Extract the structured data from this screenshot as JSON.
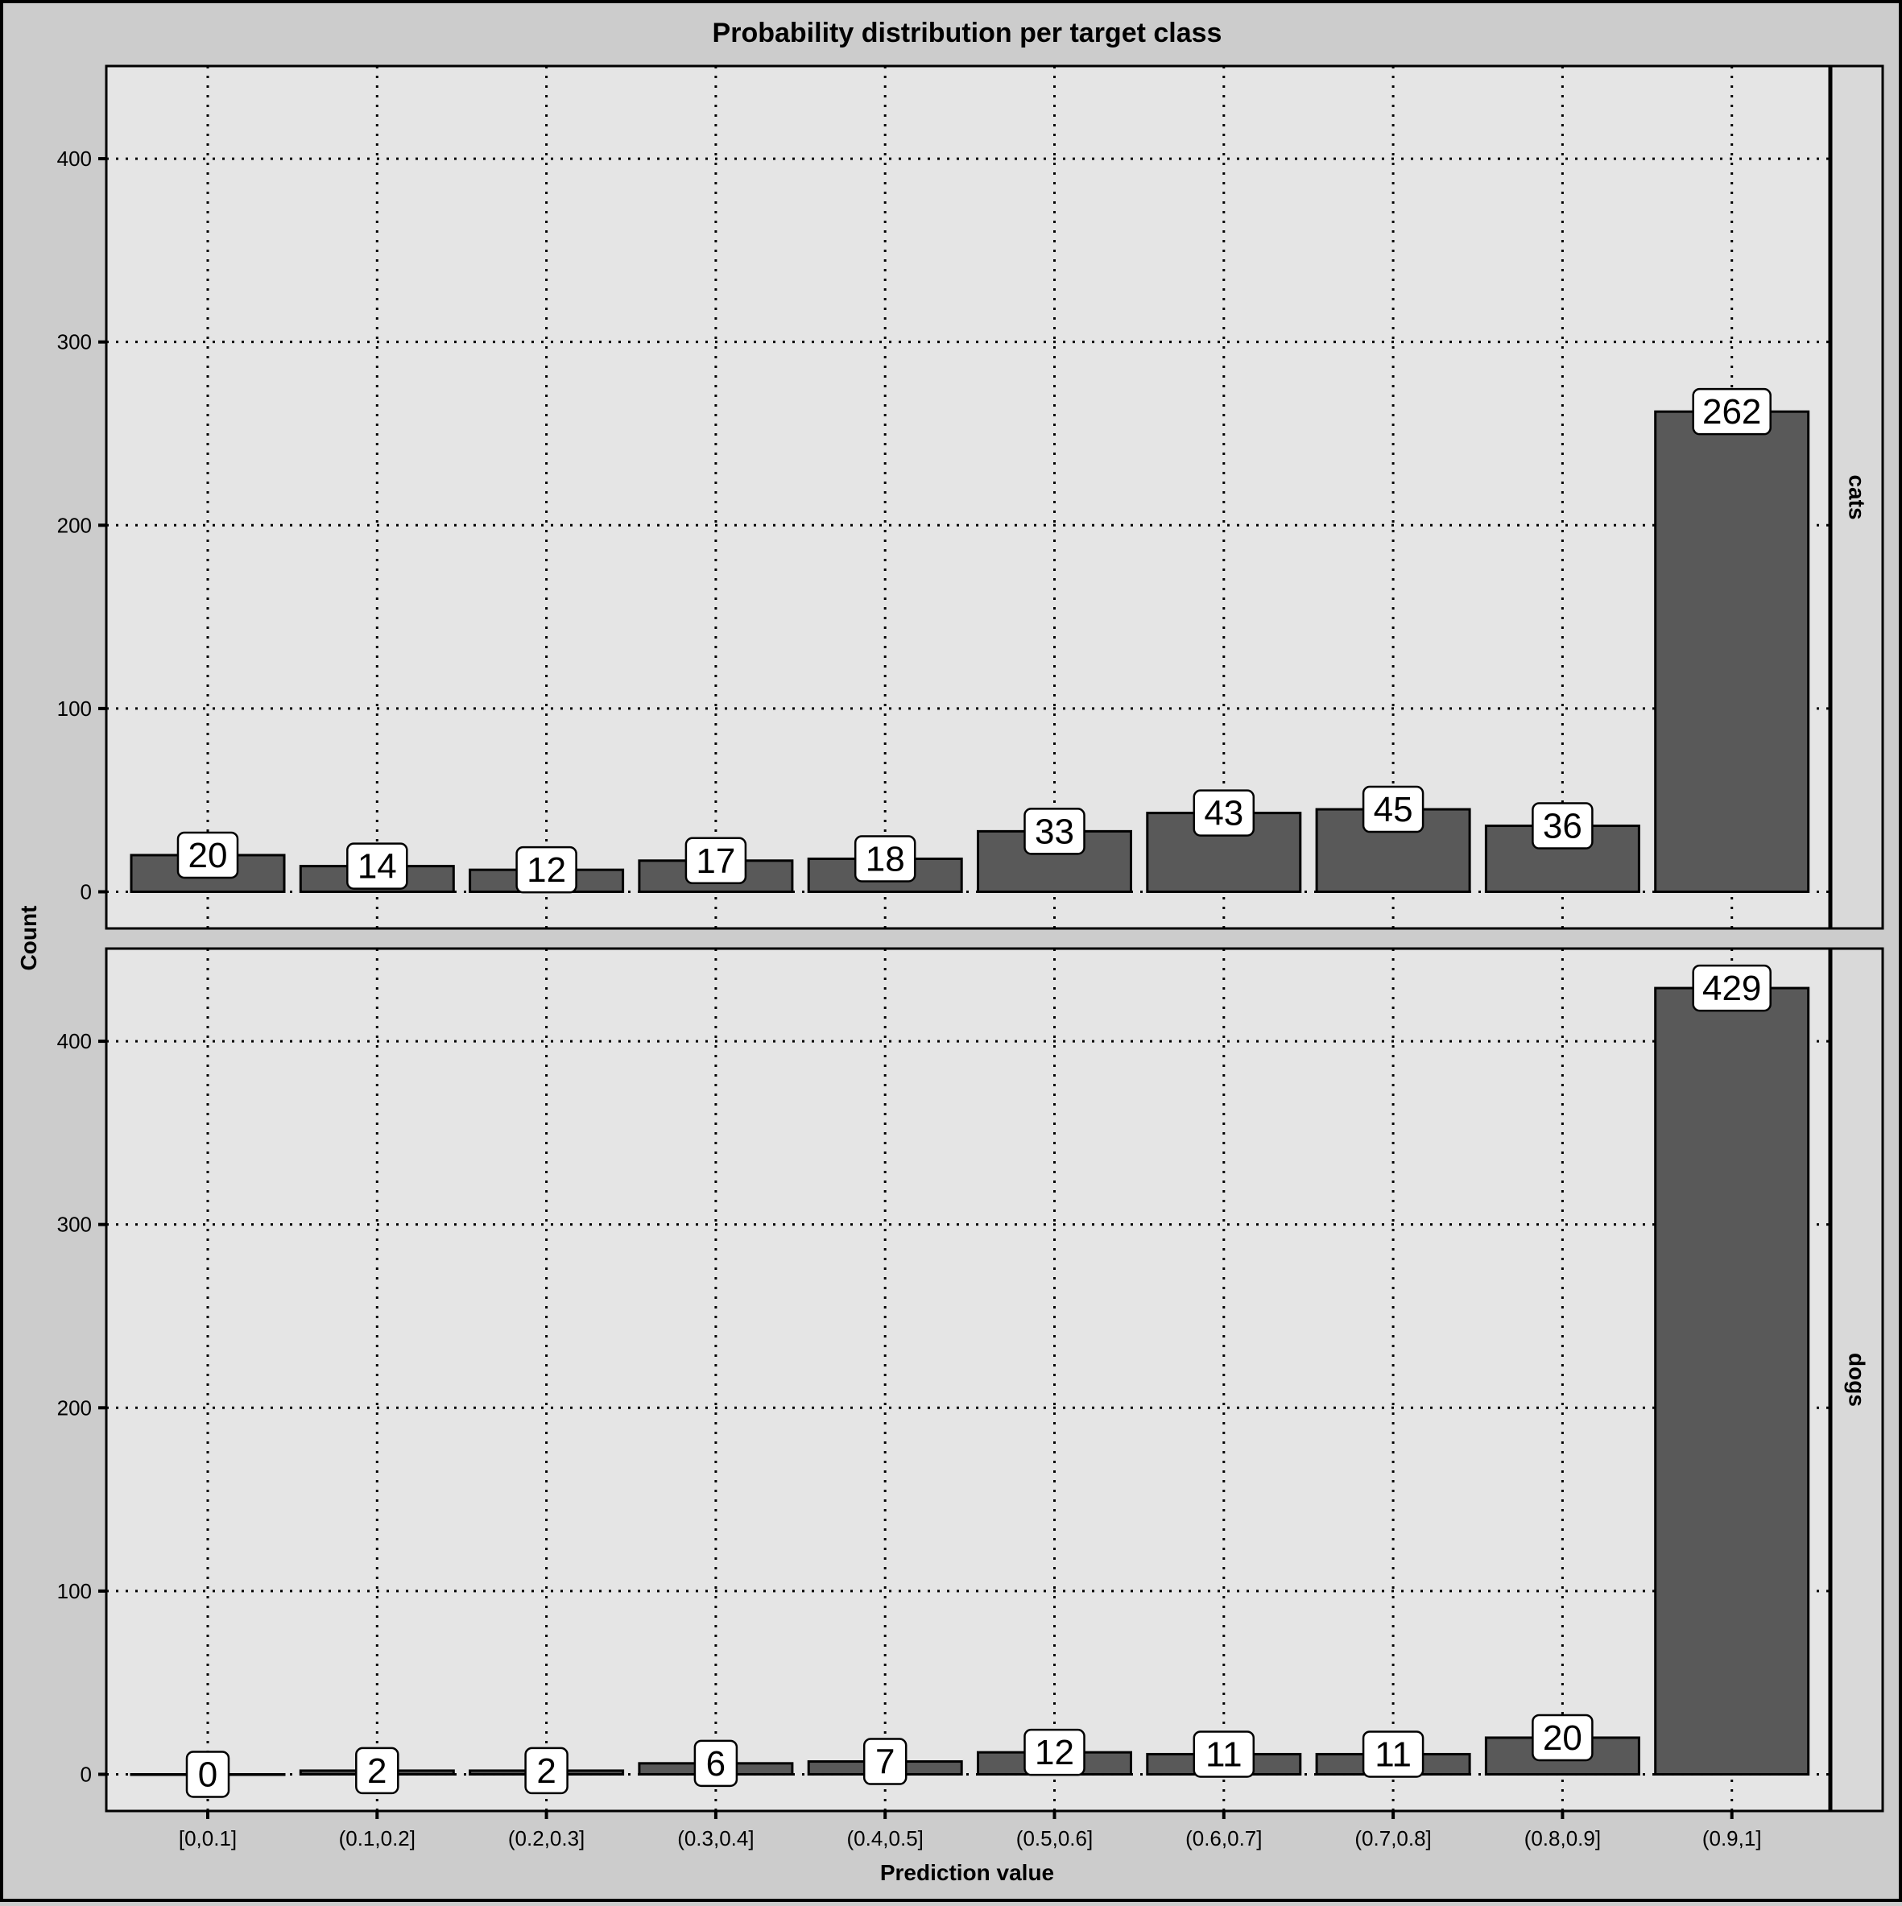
{
  "chart_data": {
    "type": "bar",
    "title": "Probability distribution per target class",
    "xlabel": "Prediction value",
    "ylabel": "Count",
    "categories": [
      "[0,0.1]",
      "(0.1,0.2]",
      "(0.2,0.3]",
      "(0.3,0.4]",
      "(0.4,0.5]",
      "(0.5,0.6]",
      "(0.6,0.7]",
      "(0.7,0.8]",
      "(0.8,0.9]",
      "(0.9,1]"
    ],
    "ylim": [
      -20,
      450
    ],
    "yticks": [
      0,
      100,
      200,
      300,
      400
    ],
    "grid": true,
    "facets": [
      {
        "name": "cats",
        "values": [
          20,
          14,
          12,
          17,
          18,
          33,
          43,
          45,
          36,
          262
        ]
      },
      {
        "name": "dogs",
        "values": [
          0,
          2,
          2,
          6,
          7,
          12,
          11,
          11,
          20,
          429
        ]
      }
    ],
    "colors": {
      "background": "#cccccc",
      "panel": "#e5e5e5",
      "bar": "#595959",
      "strip": "#d9d9d9",
      "label_fill": "#ffffff"
    }
  }
}
